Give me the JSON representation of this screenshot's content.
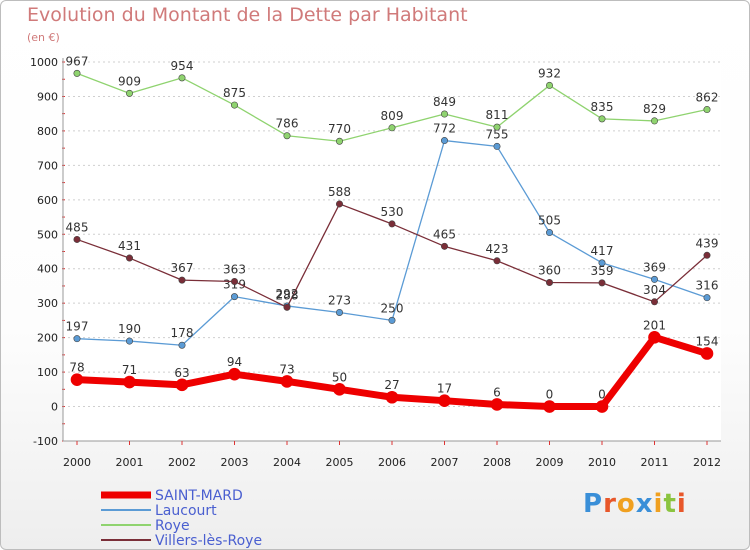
{
  "header": {
    "title": "Evolution du Montant de la Dette par Habitant",
    "unit": "(en €)"
  },
  "logo": {
    "letters": [
      "P",
      "r",
      "o",
      "x",
      "i",
      "t",
      "i"
    ],
    "colors": [
      "#3a8fd8",
      "#e8572a",
      "#f0a020",
      "#3a8fd8",
      "#f0a020",
      "#8bc43f",
      "#e8572a"
    ]
  },
  "chart_data": {
    "type": "line",
    "title": "Evolution du Montant de la Dette par Habitant",
    "subtitle": "(en €)",
    "xlabel": "",
    "ylabel": "",
    "x": [
      "2000",
      "2001",
      "2002",
      "2003",
      "2004",
      "2005",
      "2006",
      "2007",
      "2008",
      "2009",
      "2010",
      "2011",
      "2012"
    ],
    "ylim": [
      -100,
      1000
    ],
    "yticks": [
      -100,
      0,
      100,
      200,
      300,
      400,
      500,
      600,
      700,
      800,
      900,
      1000
    ],
    "grid": "horizontal dotted",
    "legend_position": "bottom-left",
    "series": [
      {
        "name": "SAINT-MARD",
        "color": "#ee0000",
        "width": 7,
        "values": [
          78,
          71,
          63,
          94,
          73,
          50,
          27,
          17,
          6,
          0,
          0,
          201,
          154
        ]
      },
      {
        "name": "Laucourt",
        "color": "#5b9bd5",
        "width": 1.3,
        "values": [
          197,
          190,
          178,
          319,
          292,
          273,
          250,
          772,
          755,
          505,
          417,
          369,
          316
        ]
      },
      {
        "name": "Roye",
        "color": "#8fd36f",
        "width": 1.3,
        "values": [
          967,
          909,
          954,
          875,
          786,
          770,
          809,
          849,
          811,
          932,
          835,
          829,
          862
        ]
      },
      {
        "name": "Villers-lès-Roye",
        "color": "#7a2e38",
        "width": 1.3,
        "values": [
          485,
          431,
          367,
          363,
          288,
          588,
          530,
          465,
          423,
          360,
          359,
          304,
          439
        ]
      }
    ]
  }
}
